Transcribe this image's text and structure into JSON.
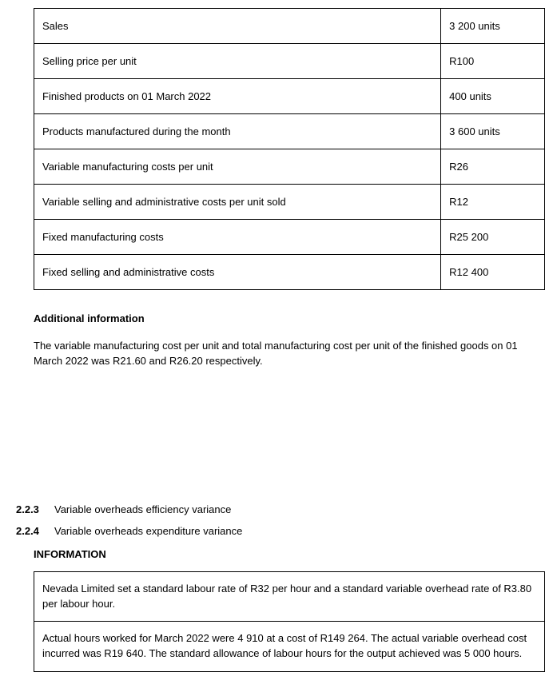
{
  "table1": {
    "rows": [
      {
        "label": "Sales",
        "value": "3 200 units"
      },
      {
        "label": "Selling price per unit",
        "value": "R100"
      },
      {
        "label": "Finished products on 01 March 2022",
        "value": "400 units"
      },
      {
        "label": "Products manufactured during the month",
        "value": "3 600 units"
      },
      {
        "label": "Variable manufacturing costs per unit",
        "value": "R26"
      },
      {
        "label": "Variable selling and administrative costs per unit sold",
        "value": "R12"
      },
      {
        "label": "Fixed manufacturing costs",
        "value": "R25 200"
      },
      {
        "label": "Fixed selling and administrative costs",
        "value": "R12 400"
      }
    ]
  },
  "additional": {
    "heading": "Additional information",
    "text": "The variable manufacturing cost per unit and total manufacturing cost per unit of the finished goods on 01 March 2022 was R21.60 and R26.20 respectively."
  },
  "items": [
    {
      "num": "2.2.3",
      "text": "Variable overheads efficiency variance"
    },
    {
      "num": "2.2.4",
      "text": "Variable overheads expenditure variance"
    }
  ],
  "information": {
    "heading": "INFORMATION",
    "rows": [
      "Nevada Limited set a standard labour rate of R32 per hour and a standard variable overhead rate of R3.80 per labour hour.",
      "Actual hours worked for March 2022 were 4 910 at a cost of R149 264.  The actual variable overhead cost incurred was R19 640.  The standard allowance of labour hours for the output achieved was 5 000 hours."
    ]
  }
}
